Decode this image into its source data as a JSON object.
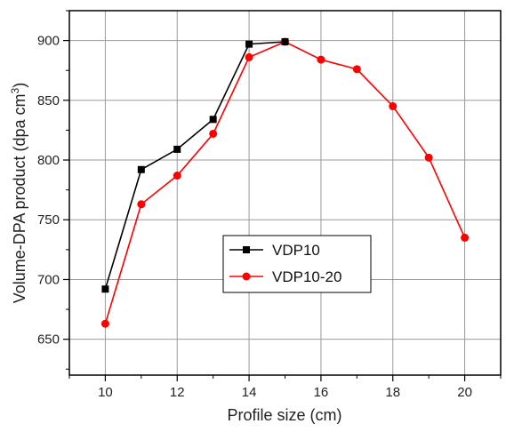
{
  "chart_data": {
    "type": "line",
    "xlabel": "Profile size (cm)",
    "ylabel_main": "Volume-DPA product (dpa cm",
    "ylabel_sup": "3",
    "ylabel_close": ")",
    "xlim": [
      9,
      21
    ],
    "ylim": [
      620,
      925
    ],
    "xticks": [
      10,
      12,
      14,
      16,
      18,
      20
    ],
    "xticks_minor": [
      9,
      11,
      13,
      15,
      17,
      19,
      21
    ],
    "yticks": [
      650,
      700,
      750,
      800,
      850,
      900
    ],
    "grid": true,
    "legend_placement": "center",
    "series": [
      {
        "name": "VDP10",
        "color": "#000000",
        "marker": "square",
        "x": [
          10,
          11,
          12,
          13,
          14,
          15
        ],
        "y": [
          692,
          792,
          809,
          834,
          897,
          899
        ]
      },
      {
        "name": "VDP10-20",
        "color": "#ff0000",
        "marker": "circle",
        "x": [
          10,
          11,
          12,
          13,
          14,
          15,
          16,
          17,
          18,
          19,
          20
        ],
        "y": [
          663,
          763,
          787,
          822,
          886,
          899,
          884,
          876,
          845,
          802,
          735
        ]
      }
    ]
  }
}
